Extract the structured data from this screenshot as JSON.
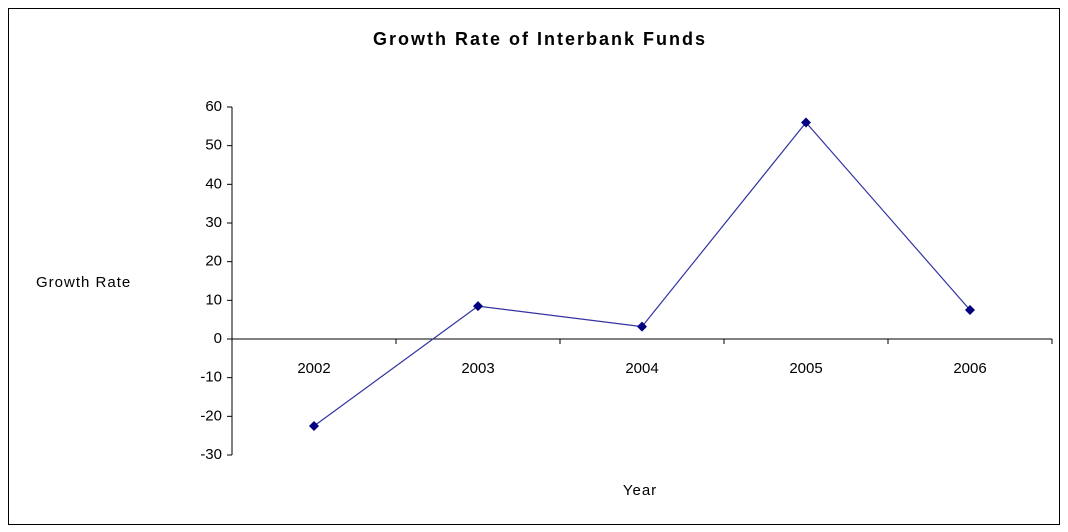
{
  "chart_data": {
    "type": "line",
    "title": "Growth Rate of Interbank Funds",
    "x_label": "Year",
    "y_label": "Growth Rate",
    "categories": [
      "2002",
      "2003",
      "2004",
      "2005",
      "2006"
    ],
    "series": [
      {
        "name": "Growth Rate",
        "color": "#000080",
        "values": [
          -22.5,
          8.5,
          3.2,
          56,
          7.5
        ]
      }
    ],
    "ylim": [
      -30,
      60
    ],
    "yticks": [
      -30,
      -20,
      -10,
      0,
      10,
      20,
      30,
      40,
      50,
      60
    ],
    "grid": false
  }
}
